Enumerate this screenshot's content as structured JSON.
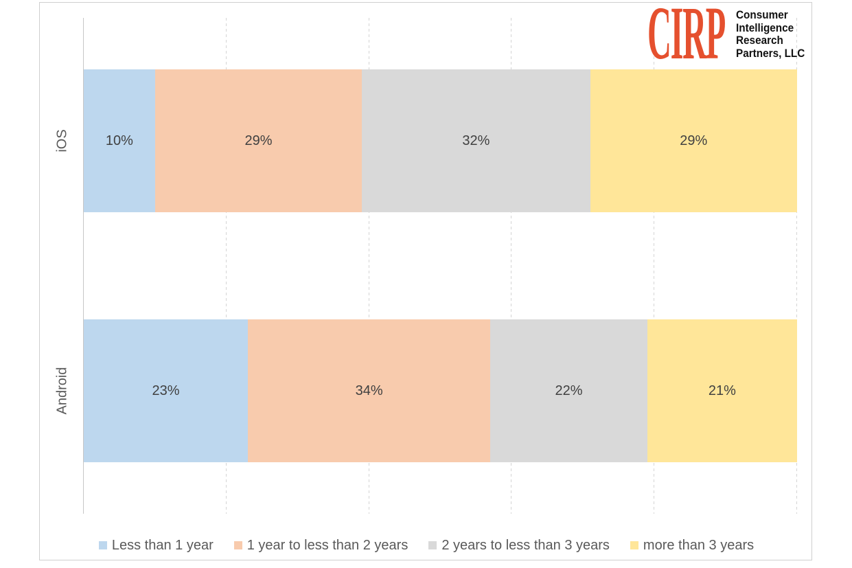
{
  "logo": {
    "acronym": "CIRP",
    "org_lines": [
      "Consumer",
      "Intelligence",
      "Research",
      "Partners, LLC"
    ]
  },
  "chart_data": {
    "type": "bar",
    "orientation": "horizontal",
    "stacked": true,
    "title": "",
    "xlabel": "",
    "ylabel": "",
    "unit": "%",
    "categories": [
      "iOS",
      "Android"
    ],
    "series": [
      {
        "name": "Less than 1 year",
        "color": "#BDD7EE",
        "values": [
          10,
          23
        ]
      },
      {
        "name": "1 year to less than 2 years",
        "color": "#F8CBAD",
        "values": [
          29,
          34
        ]
      },
      {
        "name": "2 years to less than 3 years",
        "color": "#D9D9D9",
        "values": [
          32,
          22
        ]
      },
      {
        "name": "more than 3 years",
        "color": "#FFE699",
        "values": [
          29,
          21
        ]
      }
    ],
    "value_label_format": "{v}%",
    "xlim": [
      0,
      100
    ],
    "gridline_interval": 20,
    "gridline_style": "dashed",
    "legend_position": "bottom"
  }
}
